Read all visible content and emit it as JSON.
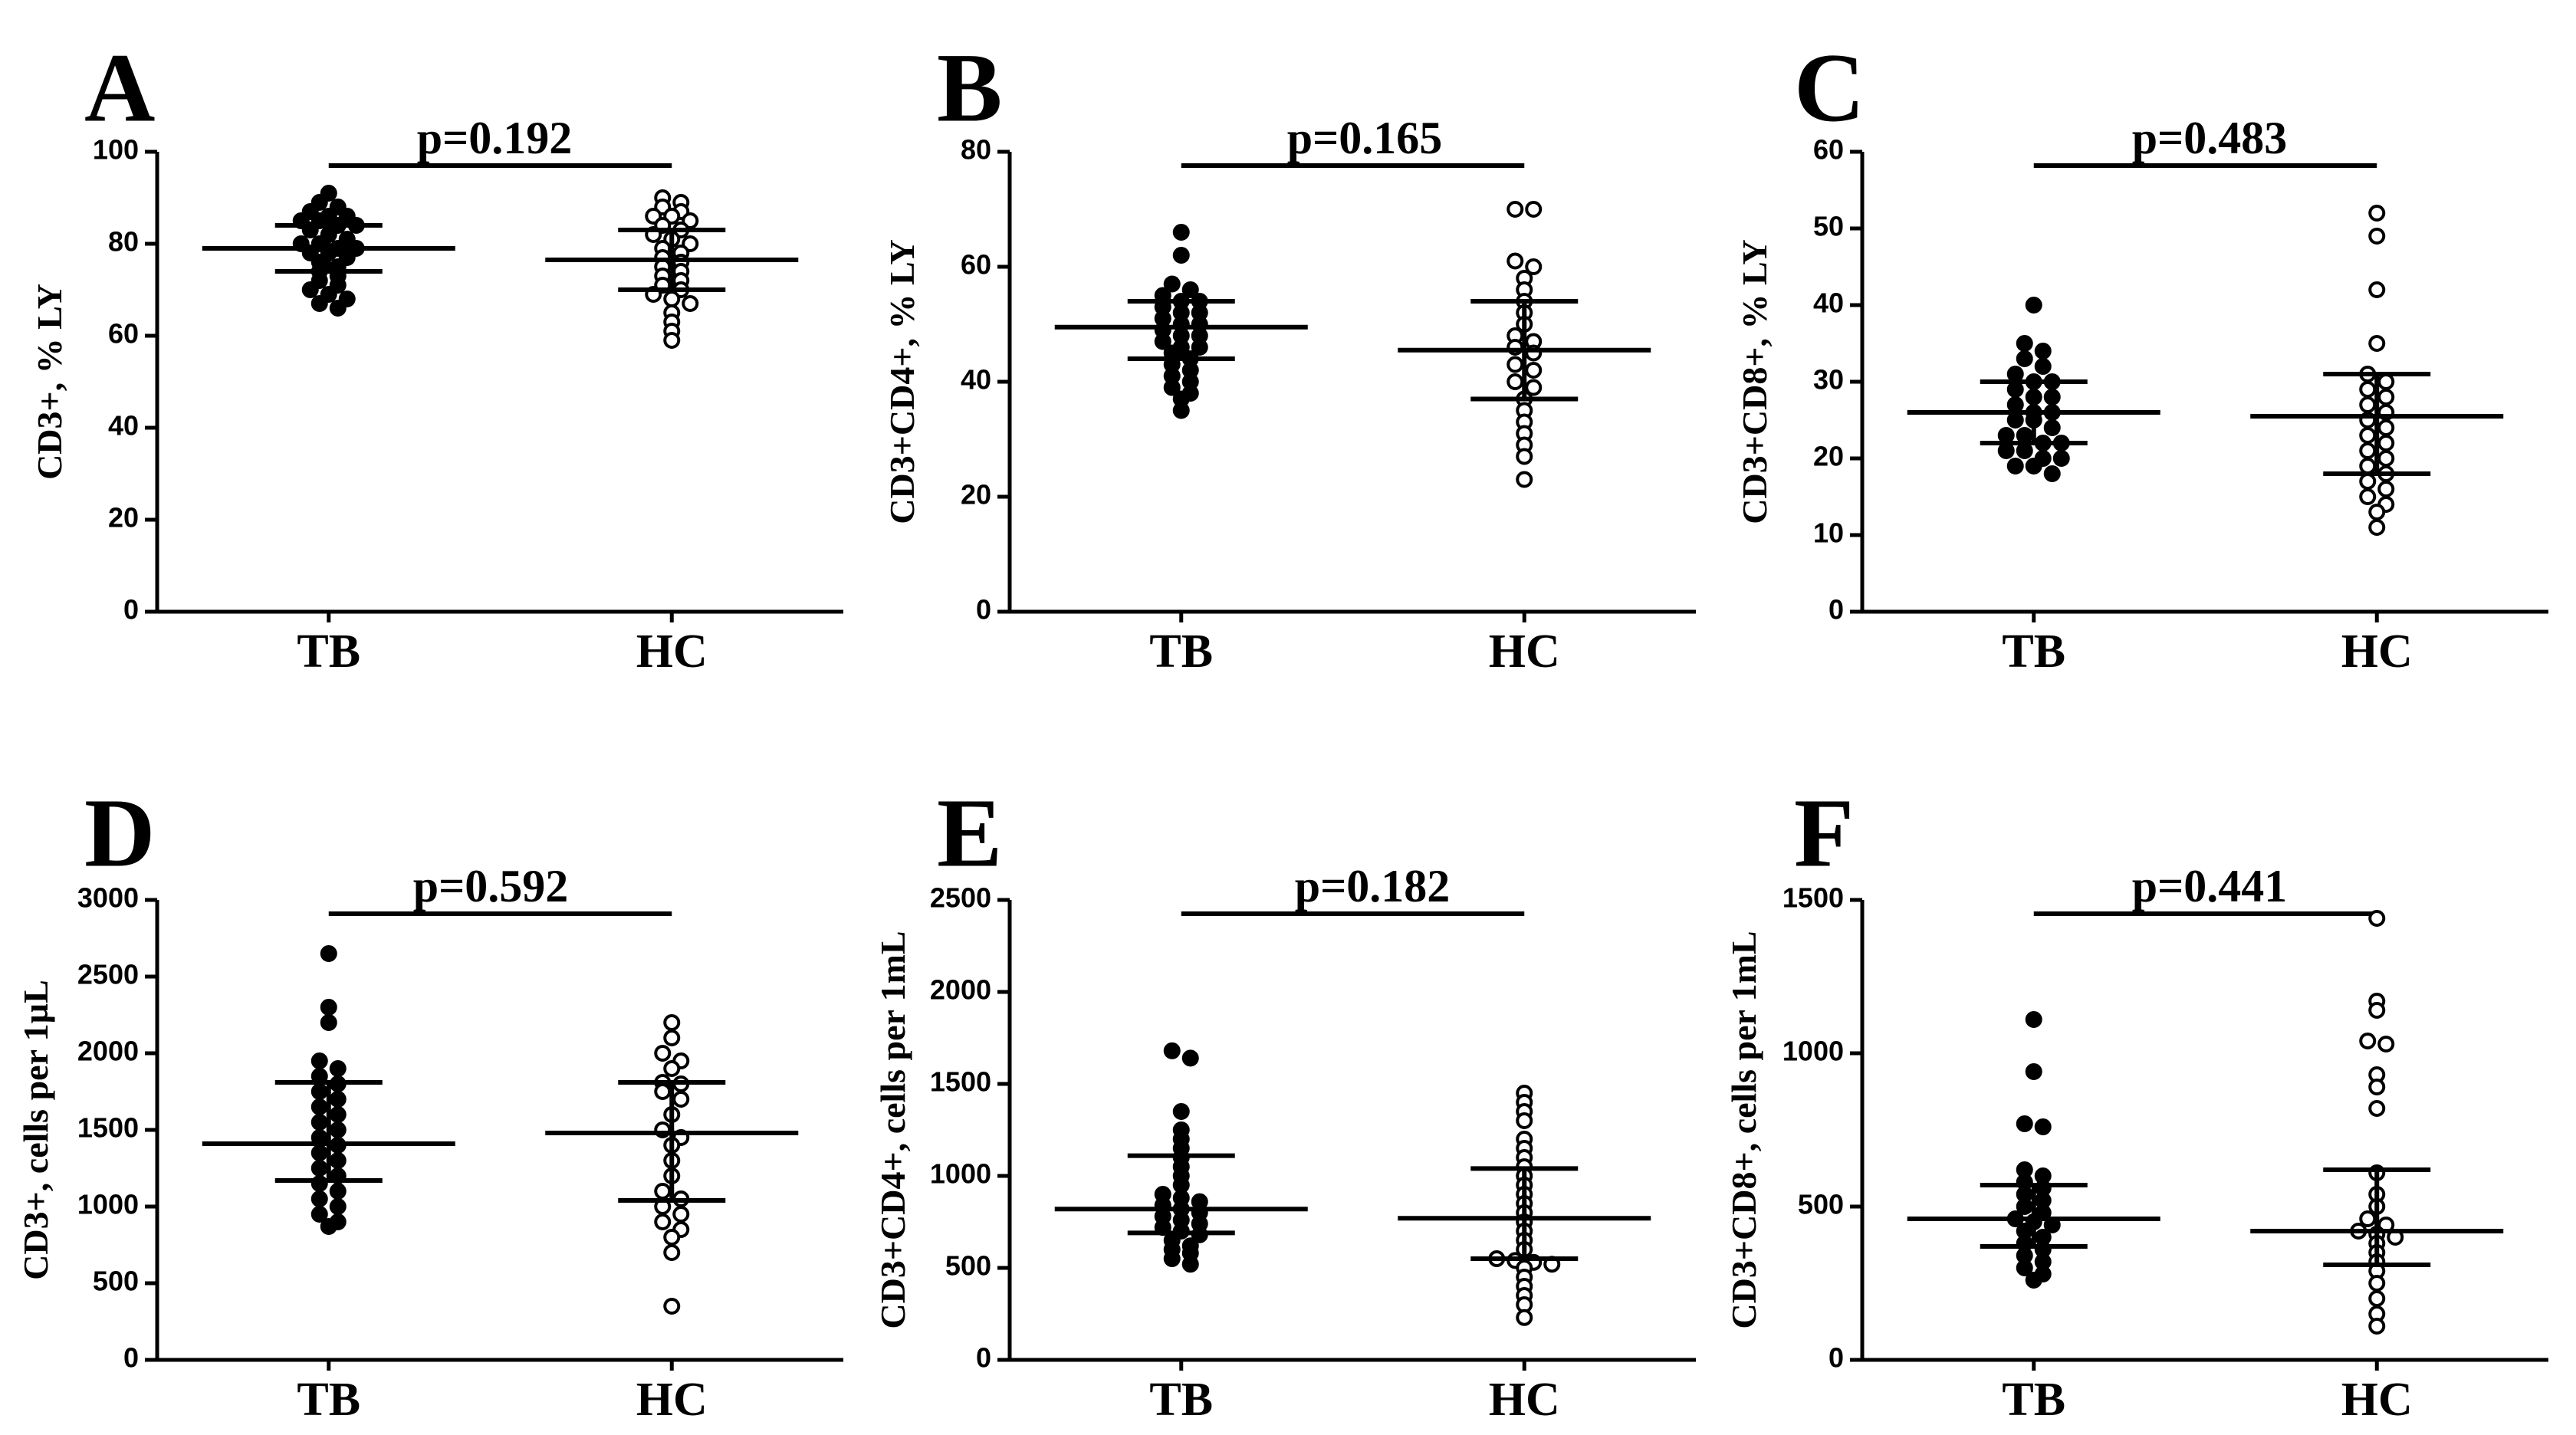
{
  "figure": {
    "categories": [
      "TB",
      "HC"
    ]
  },
  "chart_data": [
    {
      "panel": "A",
      "type": "scatter",
      "ylabel": "CD3+, % LY",
      "ylim": [
        0,
        100
      ],
      "yticks": [
        0,
        20,
        40,
        60,
        80,
        100
      ],
      "p_value": "p=0.192",
      "groups": [
        {
          "name": "TB",
          "filled": true,
          "mean": 79,
          "sd_low": 74,
          "sd_high": 84,
          "values": [
            91,
            89,
            88,
            87,
            86,
            86,
            85,
            85,
            84,
            84,
            83,
            82,
            81,
            80,
            80,
            79,
            79,
            78,
            78,
            77,
            76,
            75,
            74,
            73,
            72,
            71,
            70,
            69,
            68,
            67,
            66
          ]
        },
        {
          "name": "HC",
          "filled": false,
          "mean": 76.5,
          "sd_low": 70,
          "sd_high": 83,
          "values": [
            90,
            89,
            88,
            87,
            86,
            86,
            85,
            84,
            83,
            82,
            81,
            80,
            79,
            78,
            77,
            76,
            75,
            74,
            73,
            72,
            71,
            70,
            69,
            68,
            67,
            65,
            63,
            61,
            59
          ]
        }
      ]
    },
    {
      "panel": "B",
      "type": "scatter",
      "ylabel": "CD3+CD4+, % LY",
      "ylim": [
        0,
        80
      ],
      "yticks": [
        0,
        20,
        40,
        60,
        80
      ],
      "p_value": "p=0.165",
      "groups": [
        {
          "name": "TB",
          "filled": true,
          "mean": 49.5,
          "sd_low": 44,
          "sd_high": 54,
          "values": [
            66,
            62,
            57,
            56,
            55,
            54,
            54,
            53,
            52,
            52,
            51,
            50,
            50,
            49,
            48,
            48,
            47,
            46,
            46,
            45,
            44,
            43,
            42,
            41,
            40,
            39,
            38,
            37,
            35
          ]
        },
        {
          "name": "HC",
          "filled": false,
          "mean": 45.5,
          "sd_low": 37,
          "sd_high": 54,
          "values": [
            70,
            70,
            61,
            60,
            58,
            56,
            54,
            52,
            50,
            48,
            47,
            46,
            45,
            43,
            42,
            40,
            39,
            37,
            35,
            33,
            31,
            29,
            27,
            23
          ]
        }
      ]
    },
    {
      "panel": "C",
      "type": "scatter",
      "ylabel": "CD3+CD8+, % LY",
      "ylim": [
        0,
        60
      ],
      "yticks": [
        0,
        10,
        20,
        30,
        40,
        50,
        60
      ],
      "p_value": "p=0.483",
      "groups": [
        {
          "name": "TB",
          "filled": true,
          "mean": 26,
          "sd_low": 22,
          "sd_high": 30,
          "values": [
            40,
            35,
            34,
            33,
            32,
            31,
            30,
            30,
            29,
            28,
            28,
            27,
            26,
            26,
            25,
            25,
            24,
            23,
            23,
            22,
            22,
            21,
            21,
            20,
            20,
            19,
            19,
            18
          ]
        },
        {
          "name": "HC",
          "filled": false,
          "mean": 25.5,
          "sd_low": 18,
          "sd_high": 31,
          "values": [
            52,
            49,
            42,
            35,
            31,
            30,
            29,
            28,
            27,
            26,
            25,
            24,
            23,
            22,
            21,
            20,
            19,
            18,
            17,
            16,
            15,
            14,
            13,
            11
          ]
        }
      ]
    },
    {
      "panel": "D",
      "type": "scatter",
      "ylabel": "CD3+, cells per 1µL",
      "ylim": [
        0,
        3000
      ],
      "yticks": [
        0,
        500,
        1000,
        1500,
        2000,
        2500,
        3000
      ],
      "p_value": "p=0.592",
      "groups": [
        {
          "name": "TB",
          "filled": true,
          "mean": 1410,
          "sd_low": 1170,
          "sd_high": 1810,
          "values": [
            2650,
            2300,
            2200,
            1950,
            1900,
            1850,
            1800,
            1750,
            1700,
            1650,
            1600,
            1550,
            1500,
            1450,
            1400,
            1350,
            1300,
            1250,
            1200,
            1150,
            1100,
            1050,
            1000,
            950,
            900,
            870
          ]
        },
        {
          "name": "HC",
          "filled": false,
          "mean": 1480,
          "sd_low": 1040,
          "sd_high": 1810,
          "values": [
            2200,
            2100,
            2000,
            1950,
            1900,
            1810,
            1800,
            1750,
            1700,
            1600,
            1500,
            1450,
            1400,
            1300,
            1200,
            1100,
            1050,
            1000,
            950,
            900,
            850,
            800,
            700,
            350
          ]
        }
      ]
    },
    {
      "panel": "E",
      "type": "scatter",
      "ylabel": "CD3+CD4+, cells per 1mL",
      "ylim": [
        0,
        2500
      ],
      "yticks": [
        0,
        500,
        1000,
        1500,
        2000,
        2500
      ],
      "p_value": "p=0.182",
      "groups": [
        {
          "name": "TB",
          "filled": true,
          "mean": 820,
          "sd_low": 690,
          "sd_high": 1110,
          "values": [
            1680,
            1640,
            1350,
            1250,
            1200,
            1150,
            1100,
            1050,
            1000,
            950,
            900,
            880,
            860,
            840,
            820,
            800,
            780,
            760,
            740,
            720,
            700,
            680,
            650,
            620,
            600,
            580,
            550,
            520
          ]
        },
        {
          "name": "HC",
          "filled": false,
          "mean": 770,
          "sd_low": 550,
          "sd_high": 1040,
          "values": [
            1450,
            1400,
            1350,
            1300,
            1200,
            1150,
            1100,
            1050,
            1000,
            950,
            900,
            850,
            800,
            750,
            700,
            650,
            600,
            550,
            540,
            530,
            520,
            500,
            450,
            400,
            350,
            300,
            230
          ]
        }
      ]
    },
    {
      "panel": "F",
      "type": "scatter",
      "ylabel": "CD3+CD8+, cells per 1mL",
      "ylim": [
        0,
        1500
      ],
      "yticks": [
        0,
        500,
        1000,
        1500
      ],
      "p_value": "p=0.441",
      "groups": [
        {
          "name": "TB",
          "filled": true,
          "mean": 460,
          "sd_low": 370,
          "sd_high": 570,
          "values": [
            1110,
            940,
            770,
            760,
            620,
            600,
            580,
            560,
            540,
            520,
            500,
            480,
            460,
            450,
            440,
            420,
            400,
            380,
            360,
            340,
            320,
            300,
            280,
            260
          ]
        },
        {
          "name": "HC",
          "filled": false,
          "mean": 420,
          "sd_low": 310,
          "sd_high": 620,
          "values": [
            1440,
            1170,
            1140,
            1040,
            1030,
            930,
            890,
            820,
            610,
            540,
            500,
            460,
            440,
            420,
            410,
            400,
            380,
            350,
            320,
            290,
            250,
            200,
            150,
            110
          ]
        }
      ]
    }
  ]
}
